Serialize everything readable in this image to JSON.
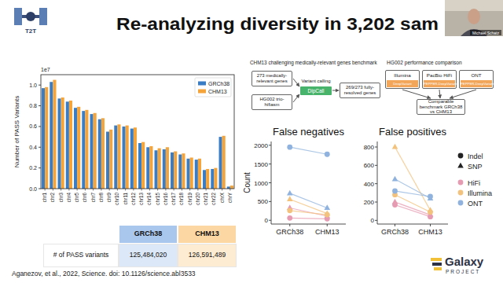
{
  "header": {
    "title": "Re-analyzing diversity in 3,202 sam",
    "logo": "T2T",
    "speaker": "Michael Schatz"
  },
  "chart_data": [
    {
      "type": "bar",
      "y_label": "Number of PASS Variants",
      "annotation": "1e7",
      "categories": [
        "chr1",
        "chr2",
        "chr3",
        "chr4",
        "chr5",
        "chr6",
        "chr7",
        "chr8",
        "chr9",
        "chr10",
        "chr11",
        "chr12",
        "chr13",
        "chr14",
        "chr15",
        "chr16",
        "chr17",
        "chr18",
        "chr19",
        "chr20",
        "chr21",
        "chr22",
        "chrX",
        "chrY"
      ],
      "series": [
        {
          "name": "GRCh38",
          "color": "#3b7dc4",
          "values": [
            0.97,
            1.03,
            0.87,
            0.84,
            0.78,
            0.75,
            0.72,
            0.67,
            0.55,
            0.61,
            0.6,
            0.58,
            0.44,
            0.4,
            0.37,
            0.38,
            0.35,
            0.33,
            0.29,
            0.28,
            0.18,
            0.19,
            0.5,
            0.02
          ]
        },
        {
          "name": "CHM13",
          "color": "#f5a43a",
          "values": [
            0.98,
            1.05,
            0.88,
            0.85,
            0.79,
            0.76,
            0.73,
            0.68,
            0.57,
            0.62,
            0.61,
            0.59,
            0.45,
            0.41,
            0.39,
            0.4,
            0.36,
            0.34,
            0.3,
            0.29,
            0.19,
            0.2,
            0.51,
            0.03
          ]
        }
      ],
      "ylim": [
        0,
        1.1
      ],
      "yticks": [
        {
          "value": 0,
          "label": "0.0"
        },
        {
          "value": 0.2,
          "label": "0.2"
        },
        {
          "value": 0.4,
          "label": "0.4"
        },
        {
          "value": 0.6,
          "label": "0.6"
        },
        {
          "value": 0.8,
          "label": "0.8"
        },
        {
          "value": 1,
          "label": "1.0"
        }
      ],
      "legend": "upper right",
      "grid": false
    },
    {
      "type": "scatter",
      "title": "False negatives",
      "y_label": "Count",
      "categories": [
        "GRCh38",
        "CHM13"
      ],
      "series": [
        {
          "name": "HiFi",
          "color": "#e79bb2",
          "marker": "circle",
          "values": [
            60,
            40
          ]
        },
        {
          "name": "HiFi",
          "color": "#e79bb2",
          "marker": "triangle",
          "values": [
            330,
            110
          ]
        },
        {
          "name": "Illumina",
          "color": "#f3c27c",
          "marker": "circle",
          "values": [
            260,
            150
          ]
        },
        {
          "name": "Illumina",
          "color": "#f3c27c",
          "marker": "triangle",
          "values": [
            560,
            180
          ]
        },
        {
          "name": "ONT",
          "color": "#8fb3de",
          "marker": "circle",
          "values": [
            1950,
            1760
          ]
        },
        {
          "name": "ONT",
          "color": "#8fb3de",
          "marker": "triangle",
          "values": [
            720,
            330
          ]
        }
      ],
      "ylim": [
        -100,
        2100
      ],
      "yticks": [
        0,
        500,
        1000,
        1500,
        2000
      ],
      "grid": false
    },
    {
      "type": "scatter",
      "title": "False positives",
      "categories": [
        "GRCh38",
        "CHM13"
      ],
      "series": [
        {
          "name": "HiFi",
          "color": "#e79bb2",
          "marker": "circle",
          "values": [
            170,
            40
          ]
        },
        {
          "name": "HiFi",
          "color": "#e79bb2",
          "marker": "triangle",
          "values": [
            200,
            60
          ]
        },
        {
          "name": "Illumina",
          "color": "#f3c27c",
          "marker": "circle",
          "values": [
            280,
            90
          ]
        },
        {
          "name": "Illumina",
          "color": "#f3c27c",
          "marker": "triangle",
          "values": [
            800,
            110
          ]
        },
        {
          "name": "ONT",
          "color": "#8fb3de",
          "marker": "circle",
          "values": [
            320,
            260
          ]
        },
        {
          "name": "ONT",
          "color": "#8fb3de",
          "marker": "triangle",
          "values": [
            450,
            240
          ]
        }
      ],
      "ylim": [
        -40,
        860
      ],
      "yticks": [
        0,
        200,
        400,
        600,
        800
      ],
      "legend": "right",
      "legend_markers": [
        {
          "name": "Indel",
          "marker": "circle"
        },
        {
          "name": "SNP",
          "marker": "triangle"
        }
      ],
      "grid": false
    }
  ],
  "table": {
    "columns": [
      "GRCh38",
      "CHM13"
    ],
    "rows": [
      [
        "# of PASS variants",
        "125,484,020",
        "126,591,489"
      ]
    ]
  },
  "diagram": {
    "left": {
      "title": "CHM13 challenging medically-relevant genes benchmark",
      "inputs": [
        "273 medically-relevant genes",
        "HG002 trio-hifiasm"
      ],
      "step": "Variant calling",
      "tool": "DipCall",
      "output": "269/273 fully-resolved genes"
    },
    "right": {
      "title": "HG002 performance comparison",
      "platforms": [
        {
          "label": "Illumina",
          "caller": "DeepVariant"
        },
        {
          "label": "PacBio HiFi",
          "caller": "PEPPER-DeepVariant"
        },
        {
          "label": "ONT",
          "caller": "PEPPER-DeepVariant"
        }
      ],
      "output": "Comparable benchmark GRCh38 vs CHM13"
    }
  },
  "footer": {
    "citation": "Aganezov, et al., 2022, Science. doi: 10.1126/science.abl3533",
    "brand": "Galaxy",
    "brand_sub": "PROJECT"
  }
}
